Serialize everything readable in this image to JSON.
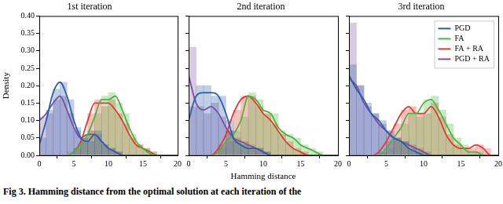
{
  "chart_data": [
    {
      "type": "histogram",
      "title": "1st iteration",
      "ylabel": "Density",
      "grid": false,
      "bins": [
        0,
        1,
        2,
        3,
        4,
        5,
        6,
        7,
        8,
        9,
        10,
        11,
        12,
        13,
        14,
        15,
        16,
        17,
        18,
        19,
        20
      ],
      "x": [
        0,
        1,
        2,
        3,
        4,
        5,
        6,
        7,
        8,
        9,
        10,
        11,
        12,
        13,
        14,
        15,
        16,
        17,
        18,
        19,
        20
      ],
      "xlim": [
        0,
        20
      ],
      "xticks": [
        0,
        5,
        10,
        15,
        20
      ],
      "ylim": [
        0,
        0.4
      ],
      "yticks": [
        {
          "value": 0,
          "label": "0.00"
        },
        {
          "value": 0.05,
          "label": "0.05"
        },
        {
          "value": 0.1,
          "label": "0.10"
        },
        {
          "value": 0.15,
          "label": "0.15"
        },
        {
          "value": 0.2,
          "label": "0.20"
        },
        {
          "value": 0.25,
          "label": "0.25"
        },
        {
          "value": 0.3,
          "label": "0.30"
        },
        {
          "value": 0.35,
          "label": "0.35"
        },
        {
          "value": 0.4,
          "label": "0.40"
        }
      ],
      "series": [
        {
          "name": "PGD",
          "color": "#2b5fa8",
          "values": [
            0.05,
            0.13,
            0.19,
            0.21,
            0.16,
            0.08,
            0.05,
            0.04,
            0.07,
            0.03,
            0.02,
            0.01,
            0,
            0,
            0,
            0,
            0,
            0,
            0,
            0
          ],
          "density": [
            0.03,
            0.1,
            0.18,
            0.21,
            0.17,
            0.1,
            0.05,
            0.04,
            0.06,
            0.04,
            0.02,
            0.01,
            0,
            0,
            0,
            0,
            0,
            0,
            0,
            0,
            0
          ]
        },
        {
          "name": "FA",
          "color": "#4cb53f",
          "values": [
            0,
            0,
            0,
            0,
            0.01,
            0.02,
            0.04,
            0.07,
            0.12,
            0.17,
            0.18,
            0.15,
            0.12,
            0.06,
            0.03,
            0.02,
            0.01,
            0,
            0,
            0
          ],
          "density": [
            0,
            0,
            0,
            0,
            0,
            0.01,
            0.03,
            0.06,
            0.11,
            0.16,
            0.16,
            0.17,
            0.13,
            0.08,
            0.04,
            0.02,
            0.005,
            0,
            0,
            0,
            0
          ]
        },
        {
          "name": "FA + RA",
          "color": "#e8372c",
          "values": [
            0,
            0,
            0,
            0,
            0,
            0.02,
            0.05,
            0.12,
            0.16,
            0.14,
            0.16,
            0.12,
            0.09,
            0.05,
            0.03,
            0.02,
            0.01,
            0,
            0,
            0
          ],
          "density": [
            0,
            0,
            0,
            0,
            0,
            0.01,
            0.04,
            0.1,
            0.15,
            0.15,
            0.15,
            0.13,
            0.1,
            0.06,
            0.03,
            0.02,
            0.01,
            0,
            0,
            0,
            0
          ]
        },
        {
          "name": "PGD + RA",
          "color": "#7b4fa3",
          "values": [
            0.11,
            0.12,
            0.16,
            0.17,
            0.12,
            0.07,
            0.05,
            0.07,
            0.06,
            0.03,
            0.02,
            0.01,
            0,
            0,
            0,
            0,
            0,
            0,
            0,
            0
          ],
          "density": [
            0.1,
            0.12,
            0.15,
            0.17,
            0.13,
            0.08,
            0.05,
            0.06,
            0.06,
            0.04,
            0.02,
            0.01,
            0,
            0,
            0,
            0,
            0,
            0,
            0,
            0,
            0
          ]
        }
      ]
    },
    {
      "type": "histogram",
      "title": "2nd iteration",
      "xlabel": "Hamming distance",
      "grid": false,
      "tick_labels": "x",
      "bins": [
        0,
        1,
        2,
        3,
        4,
        5,
        6,
        7,
        8,
        9,
        10,
        11,
        12,
        13,
        14,
        15,
        16,
        17,
        18,
        19,
        20
      ],
      "x": [
        0,
        1,
        2,
        3,
        4,
        5,
        6,
        7,
        8,
        9,
        10,
        11,
        12,
        13,
        14,
        15,
        16,
        17,
        18,
        19,
        20
      ],
      "xlim": [
        0,
        20
      ],
      "xticks": [
        0,
        5,
        10,
        15,
        20
      ],
      "ylim": [
        0,
        0.4
      ],
      "yticks": [
        0,
        0.05,
        0.1,
        0.15,
        0.2,
        0.25,
        0.3,
        0.35,
        0.4
      ],
      "series": [
        {
          "name": "PGD",
          "color": "#2b5fa8",
          "values": [
            0.14,
            0.2,
            0.2,
            0.17,
            0.17,
            0.1,
            0.04,
            0.03,
            0.02,
            0.02,
            0.01,
            0,
            0,
            0,
            0,
            0,
            0,
            0,
            0,
            0
          ],
          "density": [
            0.1,
            0.17,
            0.18,
            0.18,
            0.17,
            0.12,
            0.05,
            0.03,
            0.02,
            0.02,
            0.01,
            0,
            0,
            0,
            0,
            0,
            0,
            0,
            0,
            0,
            0
          ]
        },
        {
          "name": "FA",
          "color": "#4cb53f",
          "values": [
            0,
            0,
            0,
            0,
            0.02,
            0.04,
            0.07,
            0.11,
            0.18,
            0.16,
            0.12,
            0.12,
            0.07,
            0.06,
            0.05,
            0.03,
            0.02,
            0.01,
            0,
            0
          ],
          "density": [
            0,
            0,
            0,
            0,
            0.01,
            0.04,
            0.06,
            0.1,
            0.17,
            0.16,
            0.13,
            0.12,
            0.08,
            0.06,
            0.05,
            0.03,
            0.02,
            0.01,
            0,
            0,
            0
          ]
        },
        {
          "name": "FA + RA",
          "color": "#e8372c",
          "values": [
            0,
            0,
            0,
            0,
            0.03,
            0.07,
            0.13,
            0.17,
            0.17,
            0.14,
            0.12,
            0.09,
            0.06,
            0.04,
            0.02,
            0.01,
            0,
            0,
            0,
            0
          ],
          "density": [
            0,
            0,
            0,
            0,
            0.02,
            0.06,
            0.12,
            0.16,
            0.17,
            0.15,
            0.12,
            0.1,
            0.07,
            0.04,
            0.02,
            0.01,
            0,
            0,
            0,
            0,
            0
          ]
        },
        {
          "name": "PGD + RA",
          "color": "#7b4fa3",
          "values": [
            0.31,
            0.14,
            0.12,
            0.15,
            0.11,
            0.07,
            0.05,
            0.04,
            0.03,
            0.02,
            0.01,
            0,
            0,
            0,
            0,
            0,
            0,
            0,
            0,
            0
          ],
          "density": [
            0.23,
            0.15,
            0.13,
            0.14,
            0.12,
            0.08,
            0.05,
            0.04,
            0.03,
            0.02,
            0.01,
            0,
            0,
            0,
            0,
            0,
            0,
            0,
            0,
            0,
            0
          ]
        }
      ]
    },
    {
      "type": "histogram",
      "title": "3rd iteration",
      "grid": false,
      "tick_labels": "x",
      "legend": "upper right",
      "bins": [
        0,
        1,
        2,
        3,
        4,
        5,
        6,
        7,
        8,
        9,
        10,
        11,
        12,
        13,
        14,
        15,
        16,
        17,
        18,
        19,
        20
      ],
      "x": [
        0,
        1,
        2,
        3,
        4,
        5,
        6,
        7,
        8,
        9,
        10,
        11,
        12,
        13,
        14,
        15,
        16,
        17,
        18,
        19,
        20
      ],
      "xlim": [
        0,
        20
      ],
      "xticks": [
        0,
        5,
        10,
        15,
        20
      ],
      "ylim": [
        0,
        0.4
      ],
      "yticks": [
        0,
        0.05,
        0.1,
        0.15,
        0.2,
        0.25,
        0.3,
        0.35,
        0.4
      ],
      "series": [
        {
          "name": "PGD",
          "color": "#2b5fa8",
          "values": [
            0.26,
            0.2,
            0.15,
            0.12,
            0.1,
            0.07,
            0.05,
            0.04,
            0.02,
            0.01,
            0,
            0,
            0,
            0,
            0,
            0,
            0,
            0,
            0,
            0
          ],
          "density": [
            0.23,
            0.19,
            0.16,
            0.12,
            0.1,
            0.07,
            0.05,
            0.04,
            0.02,
            0.01,
            0,
            0,
            0,
            0,
            0,
            0,
            0,
            0,
            0,
            0,
            0
          ]
        },
        {
          "name": "FA",
          "color": "#4cb53f",
          "values": [
            0,
            0,
            0,
            0,
            0.01,
            0.02,
            0.05,
            0.09,
            0.12,
            0.11,
            0.16,
            0.17,
            0.13,
            0.09,
            0.05,
            0.03,
            0.01,
            0.01,
            0,
            0
          ],
          "density": [
            0,
            0,
            0,
            0,
            0,
            0.02,
            0.05,
            0.08,
            0.12,
            0.12,
            0.15,
            0.16,
            0.13,
            0.09,
            0.05,
            0.03,
            0.01,
            0.01,
            0,
            0,
            0
          ]
        },
        {
          "name": "FA + RA",
          "color": "#e8372c",
          "values": [
            0,
            0,
            0,
            0,
            0.01,
            0.04,
            0.09,
            0.13,
            0.14,
            0.12,
            0.12,
            0.15,
            0.11,
            0.06,
            0.03,
            0.02,
            0.02,
            0.03,
            0.02,
            0
          ],
          "density": [
            0,
            0,
            0,
            0,
            0.01,
            0.04,
            0.08,
            0.12,
            0.14,
            0.12,
            0.12,
            0.14,
            0.11,
            0.06,
            0.03,
            0.02,
            0.02,
            0.03,
            0.02,
            0,
            0
          ]
        },
        {
          "name": "PGD + RA",
          "color": "#7b4fa3",
          "values": [
            0.38,
            0.2,
            0.14,
            0.12,
            0.09,
            0.07,
            0.05,
            0.04,
            0.03,
            0.02,
            0.01,
            0,
            0,
            0,
            0,
            0,
            0,
            0,
            0,
            0
          ],
          "density": [
            0.22,
            0.2,
            0.15,
            0.12,
            0.09,
            0.07,
            0.05,
            0.04,
            0.03,
            0.02,
            0.01,
            0,
            0,
            0,
            0,
            0,
            0,
            0,
            0,
            0,
            0
          ]
        }
      ]
    }
  ],
  "caption": "Fig 3. Hamming distance from the optimal solution at each iteration of the"
}
